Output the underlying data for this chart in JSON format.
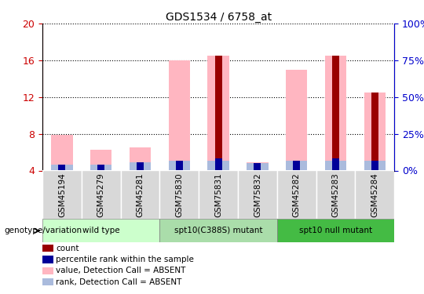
{
  "title": "GDS1534 / 6758_at",
  "samples": [
    "GSM45194",
    "GSM45279",
    "GSM45281",
    "GSM75830",
    "GSM75831",
    "GSM75832",
    "GSM45282",
    "GSM45283",
    "GSM45284"
  ],
  "groups": [
    {
      "label": "wild type",
      "color": "#ccffcc",
      "start": 0,
      "end": 3
    },
    {
      "label": "spt10(C388S) mutant",
      "color": "#aaddaa",
      "start": 3,
      "end": 6
    },
    {
      "label": "spt10 null mutant",
      "color": "#44bb44",
      "start": 6,
      "end": 9
    }
  ],
  "count_values": [
    4.15,
    4.15,
    4.15,
    4.1,
    16.5,
    4.15,
    4.15,
    16.5,
    12.5
  ],
  "percentile_values": [
    4.65,
    4.65,
    4.9,
    5.05,
    5.35,
    4.85,
    5.05,
    5.35,
    5.1
  ],
  "value_absent": [
    7.9,
    6.3,
    6.5,
    16.0,
    16.5,
    4.9,
    15.0,
    16.5,
    12.5
  ],
  "rank_absent": [
    4.65,
    4.65,
    4.9,
    5.05,
    5.05,
    4.85,
    5.05,
    5.05,
    5.1
  ],
  "ylim_left": [
    4,
    20
  ],
  "ylim_right": [
    0,
    100
  ],
  "yticks_left": [
    4,
    8,
    12,
    16,
    20
  ],
  "yticks_right": [
    0,
    25,
    50,
    75,
    100
  ],
  "color_count": "#990000",
  "color_percentile": "#000099",
  "color_value_absent": "#FFB6C1",
  "color_rank_absent": "#AABBDD",
  "left_tick_color": "#cc0000",
  "right_tick_color": "#0000cc",
  "legend_items": [
    {
      "color": "#990000",
      "label": "count"
    },
    {
      "color": "#000099",
      "label": "percentile rank within the sample"
    },
    {
      "color": "#FFB6C1",
      "label": "value, Detection Call = ABSENT"
    },
    {
      "color": "#AABBDD",
      "label": "rank, Detection Call = ABSENT"
    }
  ]
}
